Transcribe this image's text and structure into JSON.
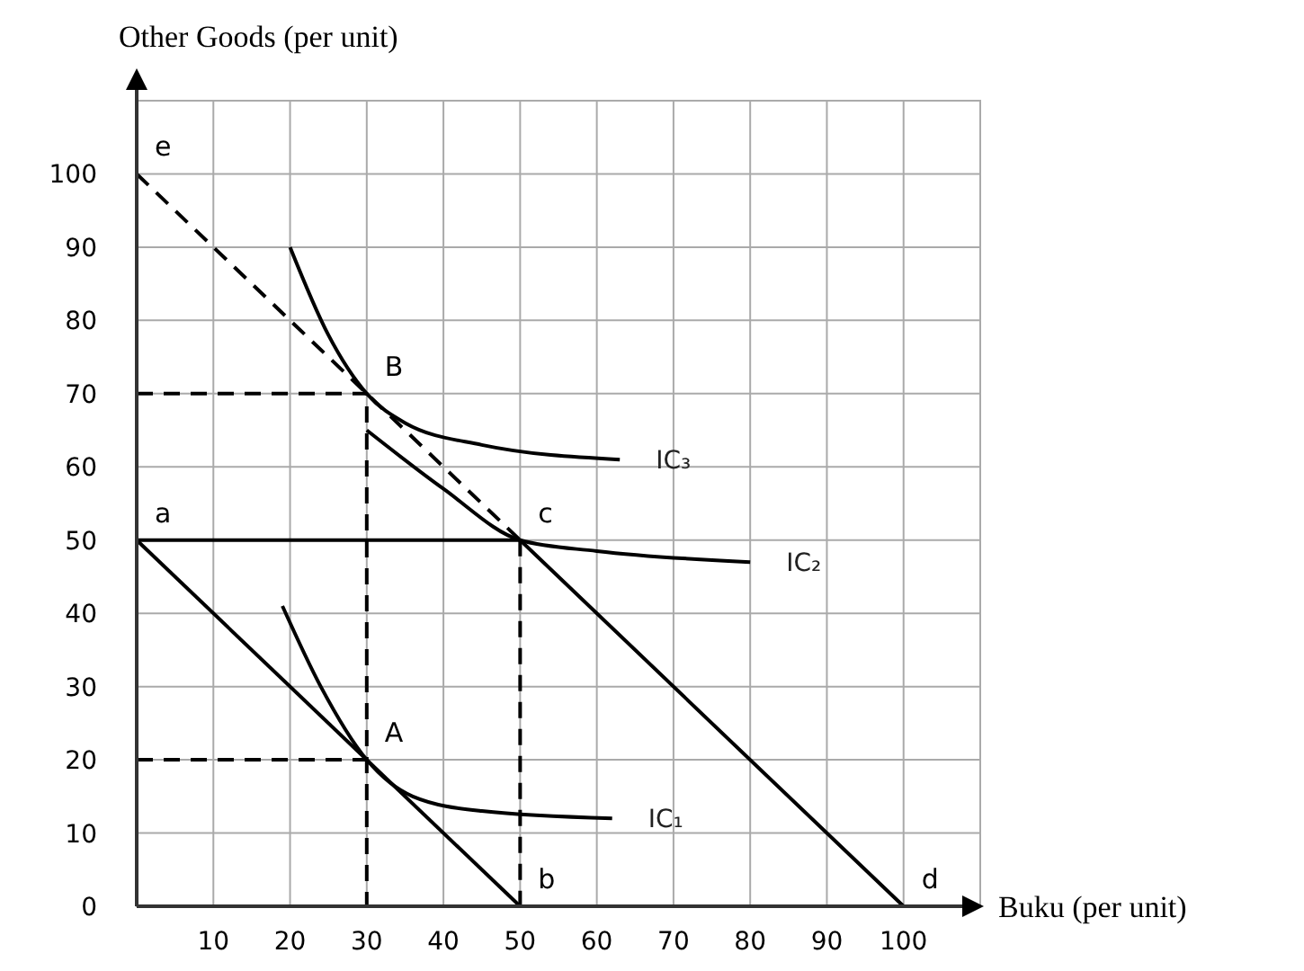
{
  "chart_data": {
    "type": "line",
    "xlabel": "Buku (per unit)",
    "ylabel": "Other Goods (per unit)",
    "xlim": [
      0,
      110
    ],
    "ylim": [
      0,
      110
    ],
    "xticks": [
      10,
      20,
      30,
      40,
      50,
      60,
      70,
      80,
      90,
      100
    ],
    "yticks": [
      0,
      10,
      20,
      30,
      40,
      50,
      60,
      70,
      80,
      90,
      100
    ],
    "grid": true,
    "series": [
      {
        "color": "#000000",
        "line_style": "solid",
        "x": [
          0,
          50
        ],
        "values": [
          50,
          0
        ]
      },
      {
        "color": "#000000",
        "line_style": "solid",
        "x": [
          0,
          50,
          100
        ],
        "values": [
          50,
          50,
          0
        ]
      },
      {
        "color": "#000000",
        "line_style": "dashed",
        "x": [
          0,
          50
        ],
        "values": [
          100,
          50
        ]
      },
      {
        "color": "#000000",
        "line_style": "dashed",
        "x": [
          0,
          30,
          30
        ],
        "values": [
          70,
          70,
          0
        ]
      },
      {
        "color": "#000000",
        "line_style": "dashed",
        "x": [
          0,
          30
        ],
        "values": [
          20,
          20
        ]
      },
      {
        "color": "#000000",
        "line_style": "dashed",
        "x": [
          50,
          50
        ],
        "values": [
          50,
          0
        ]
      },
      {
        "name": "IC₁",
        "color": "#000000",
        "line_style": "solid",
        "x": [
          19,
          24,
          30,
          36,
          45,
          62
        ],
        "values": [
          41,
          30,
          20,
          15,
          13,
          12
        ]
      },
      {
        "name": "IC₂",
        "color": "#000000",
        "line_style": "solid",
        "x": [
          30,
          40,
          50,
          60,
          80
        ],
        "values": [
          65,
          57,
          50,
          48.5,
          47
        ]
      },
      {
        "name": "IC₃",
        "color": "#000000",
        "line_style": "solid",
        "x": [
          20,
          25,
          30,
          35,
          45,
          63
        ],
        "values": [
          90,
          78,
          70,
          66,
          63,
          61
        ]
      }
    ],
    "annotations": [
      {
        "text": "e",
        "x": 0,
        "y": 100
      },
      {
        "text": "a",
        "x": 0,
        "y": 50
      },
      {
        "text": "B",
        "x": 30,
        "y": 70
      },
      {
        "text": "c",
        "x": 50,
        "y": 50
      },
      {
        "text": "A",
        "x": 30,
        "y": 20
      },
      {
        "text": "b",
        "x": 50,
        "y": 0
      },
      {
        "text": "d",
        "x": 100,
        "y": 0
      }
    ]
  }
}
